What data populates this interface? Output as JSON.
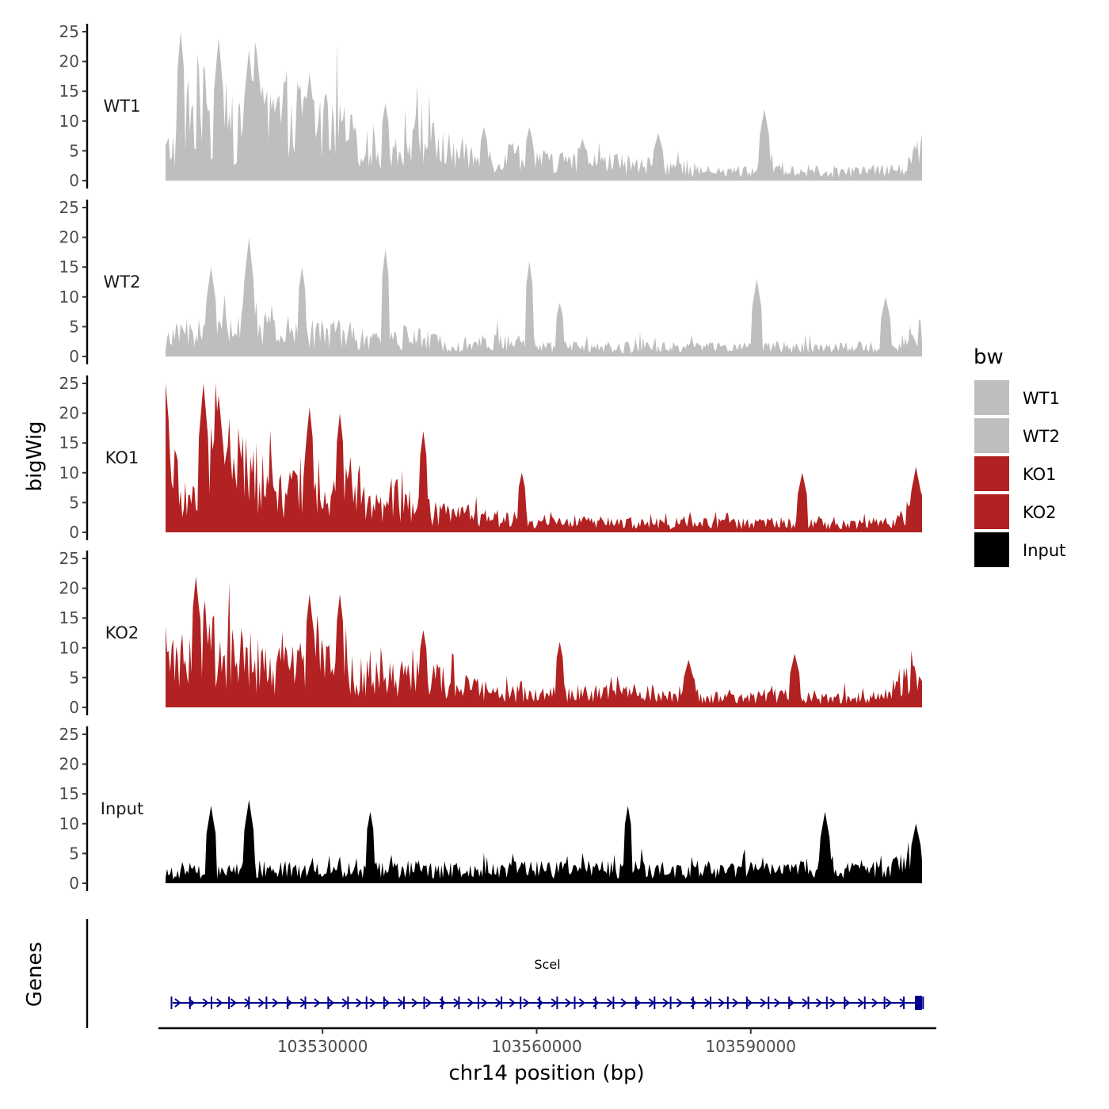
{
  "chart_data": {
    "type": "area",
    "title": "",
    "ylabel": "bigWig",
    "xlabel": "chr14 position (bp)",
    "chromosome": "chr14",
    "xlim": [
      103507000,
      103616000
    ],
    "ylim": [
      0,
      25
    ],
    "x_ticks": [
      103530000,
      103560000,
      103590000
    ],
    "y_ticks": [
      0,
      5,
      10,
      15,
      20,
      25
    ],
    "data_x_range": [
      103508000,
      103614000
    ],
    "tracks": [
      {
        "name": "WT1",
        "color": "#bebebe",
        "bins": 100,
        "anchors": [
          [
            0,
            6
          ],
          [
            2,
            9
          ],
          [
            3,
            13
          ],
          [
            5,
            15
          ],
          [
            8,
            9
          ],
          [
            11,
            11
          ],
          [
            14,
            13
          ],
          [
            17,
            15
          ],
          [
            20,
            12
          ],
          [
            23,
            11
          ],
          [
            26,
            7
          ],
          [
            29,
            5
          ],
          [
            32,
            9
          ],
          [
            35,
            8
          ],
          [
            38,
            6
          ],
          [
            41,
            5
          ],
          [
            44,
            4
          ],
          [
            47,
            6
          ],
          [
            50,
            4
          ],
          [
            53,
            4
          ],
          [
            56,
            3
          ],
          [
            59,
            4
          ],
          [
            62,
            3
          ],
          [
            65,
            3
          ],
          [
            68,
            3
          ],
          [
            71,
            2
          ],
          [
            74,
            2
          ],
          [
            77,
            2
          ],
          [
            80,
            3
          ],
          [
            83,
            2
          ],
          [
            86,
            2
          ],
          [
            89,
            2
          ],
          [
            92,
            2
          ],
          [
            95,
            2
          ],
          [
            98,
            3
          ],
          [
            99,
            6
          ]
        ],
        "peaks": [
          [
            2,
            25
          ],
          [
            7,
            24
          ],
          [
            11,
            22
          ],
          [
            12,
            22
          ],
          [
            19,
            18
          ],
          [
            29,
            13
          ],
          [
            33,
            10
          ],
          [
            42,
            9
          ],
          [
            48,
            9
          ],
          [
            55,
            7
          ],
          [
            65,
            8
          ],
          [
            79,
            12
          ]
        ]
      },
      {
        "name": "WT2",
        "color": "#bebebe",
        "bins": 100,
        "anchors": [
          [
            0,
            3
          ],
          [
            3,
            5
          ],
          [
            6,
            6
          ],
          [
            9,
            7
          ],
          [
            12,
            7
          ],
          [
            15,
            4
          ],
          [
            18,
            5
          ],
          [
            21,
            5
          ],
          [
            24,
            5
          ],
          [
            27,
            3
          ],
          [
            30,
            4
          ],
          [
            33,
            4
          ],
          [
            36,
            3
          ],
          [
            39,
            3
          ],
          [
            42,
            3
          ],
          [
            45,
            3
          ],
          [
            48,
            3
          ],
          [
            51,
            2
          ],
          [
            54,
            2
          ],
          [
            57,
            2
          ],
          [
            60,
            2
          ],
          [
            63,
            2
          ],
          [
            66,
            2
          ],
          [
            69,
            2
          ],
          [
            72,
            2
          ],
          [
            75,
            2
          ],
          [
            78,
            2
          ],
          [
            81,
            2
          ],
          [
            84,
            2
          ],
          [
            87,
            2
          ],
          [
            90,
            2
          ],
          [
            93,
            2
          ],
          [
            96,
            2
          ],
          [
            99,
            5
          ]
        ],
        "peaks": [
          [
            6,
            15
          ],
          [
            11,
            20
          ],
          [
            18,
            15
          ],
          [
            29,
            18
          ],
          [
            48,
            16
          ],
          [
            52,
            9
          ],
          [
            78,
            13
          ],
          [
            95,
            10
          ]
        ]
      },
      {
        "name": "KO1",
        "color": "#b22222",
        "bins": 100,
        "anchors": [
          [
            0,
            20
          ],
          [
            2,
            7
          ],
          [
            4,
            8
          ],
          [
            6,
            14
          ],
          [
            8,
            17
          ],
          [
            10,
            13
          ],
          [
            13,
            10
          ],
          [
            16,
            7
          ],
          [
            19,
            13
          ],
          [
            22,
            8
          ],
          [
            25,
            11
          ],
          [
            27,
            5
          ],
          [
            30,
            6
          ],
          [
            33,
            5
          ],
          [
            36,
            4
          ],
          [
            39,
            4
          ],
          [
            42,
            3
          ],
          [
            45,
            3
          ],
          [
            48,
            2
          ],
          [
            51,
            2
          ],
          [
            54,
            2
          ],
          [
            57,
            2
          ],
          [
            60,
            2
          ],
          [
            63,
            2
          ],
          [
            66,
            2
          ],
          [
            69,
            2
          ],
          [
            72,
            2
          ],
          [
            75,
            2
          ],
          [
            78,
            2
          ],
          [
            81,
            2
          ],
          [
            84,
            2
          ],
          [
            87,
            2
          ],
          [
            90,
            2
          ],
          [
            93,
            2
          ],
          [
            96,
            2
          ],
          [
            99,
            6
          ]
        ],
        "peaks": [
          [
            0,
            25
          ],
          [
            5,
            25
          ],
          [
            7,
            23
          ],
          [
            19,
            21
          ],
          [
            23,
            20
          ],
          [
            34,
            17
          ],
          [
            47,
            10
          ],
          [
            84,
            10
          ],
          [
            99,
            11
          ]
        ]
      },
      {
        "name": "KO2",
        "color": "#b22222",
        "bins": 100,
        "anchors": [
          [
            0,
            8
          ],
          [
            2,
            10
          ],
          [
            4,
            12
          ],
          [
            6,
            13
          ],
          [
            8,
            11
          ],
          [
            11,
            10
          ],
          [
            14,
            8
          ],
          [
            17,
            8
          ],
          [
            20,
            11
          ],
          [
            23,
            8
          ],
          [
            26,
            7
          ],
          [
            29,
            6
          ],
          [
            32,
            7
          ],
          [
            35,
            6
          ],
          [
            38,
            5
          ],
          [
            41,
            4
          ],
          [
            44,
            3
          ],
          [
            47,
            3
          ],
          [
            50,
            3
          ],
          [
            53,
            3
          ],
          [
            56,
            3
          ],
          [
            59,
            3
          ],
          [
            62,
            3
          ],
          [
            65,
            3
          ],
          [
            68,
            3
          ],
          [
            71,
            2
          ],
          [
            74,
            2
          ],
          [
            77,
            2
          ],
          [
            80,
            3
          ],
          [
            83,
            2
          ],
          [
            86,
            2
          ],
          [
            89,
            2
          ],
          [
            92,
            2
          ],
          [
            95,
            3
          ],
          [
            98,
            7
          ],
          [
            99,
            5
          ]
        ],
        "peaks": [
          [
            4,
            22
          ],
          [
            19,
            19
          ],
          [
            23,
            19
          ],
          [
            34,
            13
          ],
          [
            52,
            11
          ],
          [
            69,
            8
          ],
          [
            83,
            9
          ]
        ]
      },
      {
        "name": "Input",
        "color": "#000000",
        "bins": 100,
        "anchors": [
          [
            0,
            2
          ],
          [
            10,
            3
          ],
          [
            20,
            3
          ],
          [
            30,
            3
          ],
          [
            40,
            3
          ],
          [
            50,
            3
          ],
          [
            60,
            3
          ],
          [
            70,
            3
          ],
          [
            80,
            3
          ],
          [
            90,
            3
          ],
          [
            99,
            4
          ]
        ],
        "peaks": [
          [
            6,
            13
          ],
          [
            11,
            14
          ],
          [
            27,
            12
          ],
          [
            61,
            13
          ],
          [
            87,
            12
          ],
          [
            99,
            10
          ]
        ]
      }
    ],
    "legend": {
      "title": "bw",
      "position": "right",
      "entries": [
        {
          "label": "WT1",
          "color": "#bebebe"
        },
        {
          "label": "WT2",
          "color": "#bebebe"
        },
        {
          "label": "KO1",
          "color": "#b22222"
        },
        {
          "label": "KO2",
          "color": "#b22222"
        },
        {
          "label": "Input",
          "color": "#000000"
        }
      ]
    },
    "genes_track": {
      "label": "Genes",
      "genes": [
        {
          "name": "Scel",
          "start": 103509000,
          "end": 103614000,
          "strand": "+",
          "color": "#00008b",
          "exon_count": 40
        }
      ]
    }
  }
}
